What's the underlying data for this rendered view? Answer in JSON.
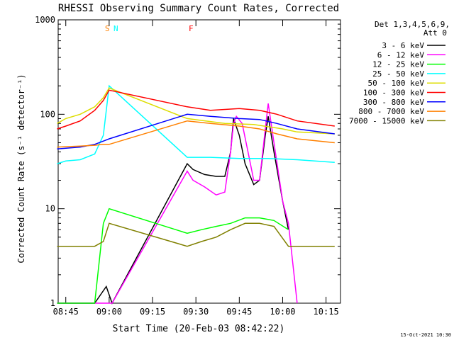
{
  "chart_data": {
    "type": "line",
    "title": "RHESSI Observing Summary Count Rates, Corrected",
    "xlabel": "Start Time (20-Feb-03 08:42:22)",
    "ylabel": "Corrected Count Rate (s⁻¹ detector⁻¹)",
    "y_scale": "log",
    "ylim": [
      1,
      1000
    ],
    "xlim": [
      "08:42:22",
      "10:20"
    ],
    "x_ticks": [
      "08:45",
      "09:00",
      "09:15",
      "09:30",
      "09:45",
      "10:00",
      "10:15"
    ],
    "y_ticks": [
      "1",
      "10",
      "100",
      "1000"
    ],
    "legend_header": [
      "Det 1,3,4,5,6,9,",
      "Att 0"
    ],
    "legend_placement": "right",
    "footer_date": "15-Oct-2021 10:30",
    "series": [
      {
        "name": "3 - 6 keV",
        "color": "#000000",
        "x": [
          "08:42",
          "08:50",
          "08:55",
          "08:59",
          "09:01",
          "09:27",
          "09:29",
          "09:33",
          "09:37",
          "09:40",
          "09:42",
          "09:43",
          "09:45",
          "09:47",
          "09:50",
          "09:52",
          "09:54",
          "09:55",
          "09:57",
          "10:00",
          "10:02"
        ],
        "y": [
          1,
          1,
          1,
          1.5,
          1,
          30,
          26,
          23,
          22,
          22,
          40,
          90,
          60,
          30,
          18,
          20,
          60,
          95,
          40,
          12,
          6
        ]
      },
      {
        "name": "6 - 12 keV",
        "color": "#ff00ff",
        "x": [
          "08:42",
          "08:55",
          "08:59",
          "09:01",
          "09:27",
          "09:29",
          "09:33",
          "09:37",
          "09:40",
          "09:42",
          "09:43",
          "09:44",
          "09:46",
          "09:48",
          "09:50",
          "09:52",
          "09:54",
          "09:55",
          "09:57",
          "10:00",
          "10:02",
          "10:05"
        ],
        "y": [
          1,
          1,
          1,
          1,
          25,
          20,
          17,
          14,
          15,
          40,
          80,
          95,
          80,
          40,
          20,
          20,
          70,
          130,
          50,
          12,
          7,
          1
        ]
      },
      {
        "name": "12 - 25 keV",
        "color": "#00ff00",
        "x": [
          "08:42",
          "08:55",
          "08:58",
          "09:00",
          "09:27",
          "09:32",
          "09:37",
          "09:42",
          "09:47",
          "09:52",
          "09:57",
          "10:02"
        ],
        "y": [
          1,
          1,
          7,
          10,
          5.5,
          6,
          6.5,
          7,
          8,
          8,
          7.5,
          6
        ]
      },
      {
        "name": "25 - 50 keV",
        "color": "#00ffff",
        "x": [
          "08:42",
          "08:45",
          "08:50",
          "08:55",
          "08:58",
          "09:00",
          "09:27",
          "09:35",
          "09:45",
          "09:55",
          "10:05",
          "10:18"
        ],
        "y": [
          30,
          32,
          33,
          38,
          60,
          200,
          35,
          35,
          34,
          34,
          33,
          31
        ]
      },
      {
        "name": "50 - 100 keV",
        "color": "#dddd00",
        "x": [
          "08:42",
          "08:45",
          "08:50",
          "08:55",
          "08:58",
          "09:00",
          "09:27",
          "09:40",
          "09:50",
          "10:00",
          "10:05",
          "10:18"
        ],
        "y": [
          80,
          90,
          100,
          120,
          150,
          190,
          90,
          80,
          78,
          70,
          65,
          62
        ]
      },
      {
        "name": "100 - 300 keV",
        "color": "#ff0000",
        "x": [
          "08:42",
          "08:45",
          "08:50",
          "08:55",
          "08:58",
          "09:00",
          "09:27",
          "09:35",
          "09:45",
          "09:52",
          "09:58",
          "10:05",
          "10:18"
        ],
        "y": [
          70,
          75,
          85,
          110,
          140,
          180,
          120,
          110,
          115,
          110,
          100,
          85,
          75
        ]
      },
      {
        "name": "300 - 800 keV",
        "color": "#0000ff",
        "x": [
          "08:42",
          "08:50",
          "08:55",
          "08:58",
          "09:00",
          "09:27",
          "09:35",
          "09:45",
          "09:52",
          "09:58",
          "10:05",
          "10:18"
        ],
        "y": [
          43,
          45,
          48,
          52,
          55,
          100,
          95,
          90,
          88,
          80,
          70,
          62
        ]
      },
      {
        "name": "800 - 7000 keV",
        "color": "#ff8000",
        "x": [
          "08:42",
          "08:50",
          "08:55",
          "08:58",
          "09:00",
          "09:27",
          "09:35",
          "09:45",
          "09:52",
          "09:58",
          "10:05",
          "10:18"
        ],
        "y": [
          45,
          46,
          47,
          48,
          48,
          85,
          80,
          75,
          70,
          62,
          55,
          50
        ]
      },
      {
        "name": "7000 - 15000 keV",
        "color": "#808000",
        "x": [
          "08:42",
          "08:45",
          "08:50",
          "08:55",
          "08:58",
          "09:00",
          "09:27",
          "09:32",
          "09:37",
          "09:42",
          "09:47",
          "09:52",
          "09:57",
          "10:02",
          "10:18"
        ],
        "y": [
          4,
          4,
          4,
          4,
          4.5,
          7,
          4,
          4.5,
          5,
          6,
          7,
          7,
          6.5,
          4,
          4
        ]
      }
    ],
    "annotations": [
      {
        "label": "S",
        "x": "09:00",
        "color": "#ff8000"
      },
      {
        "label": "N",
        "x": "09:01",
        "color": "#00ffff"
      },
      {
        "label": "F",
        "x": "09:27",
        "color": "#ff0000"
      }
    ]
  }
}
